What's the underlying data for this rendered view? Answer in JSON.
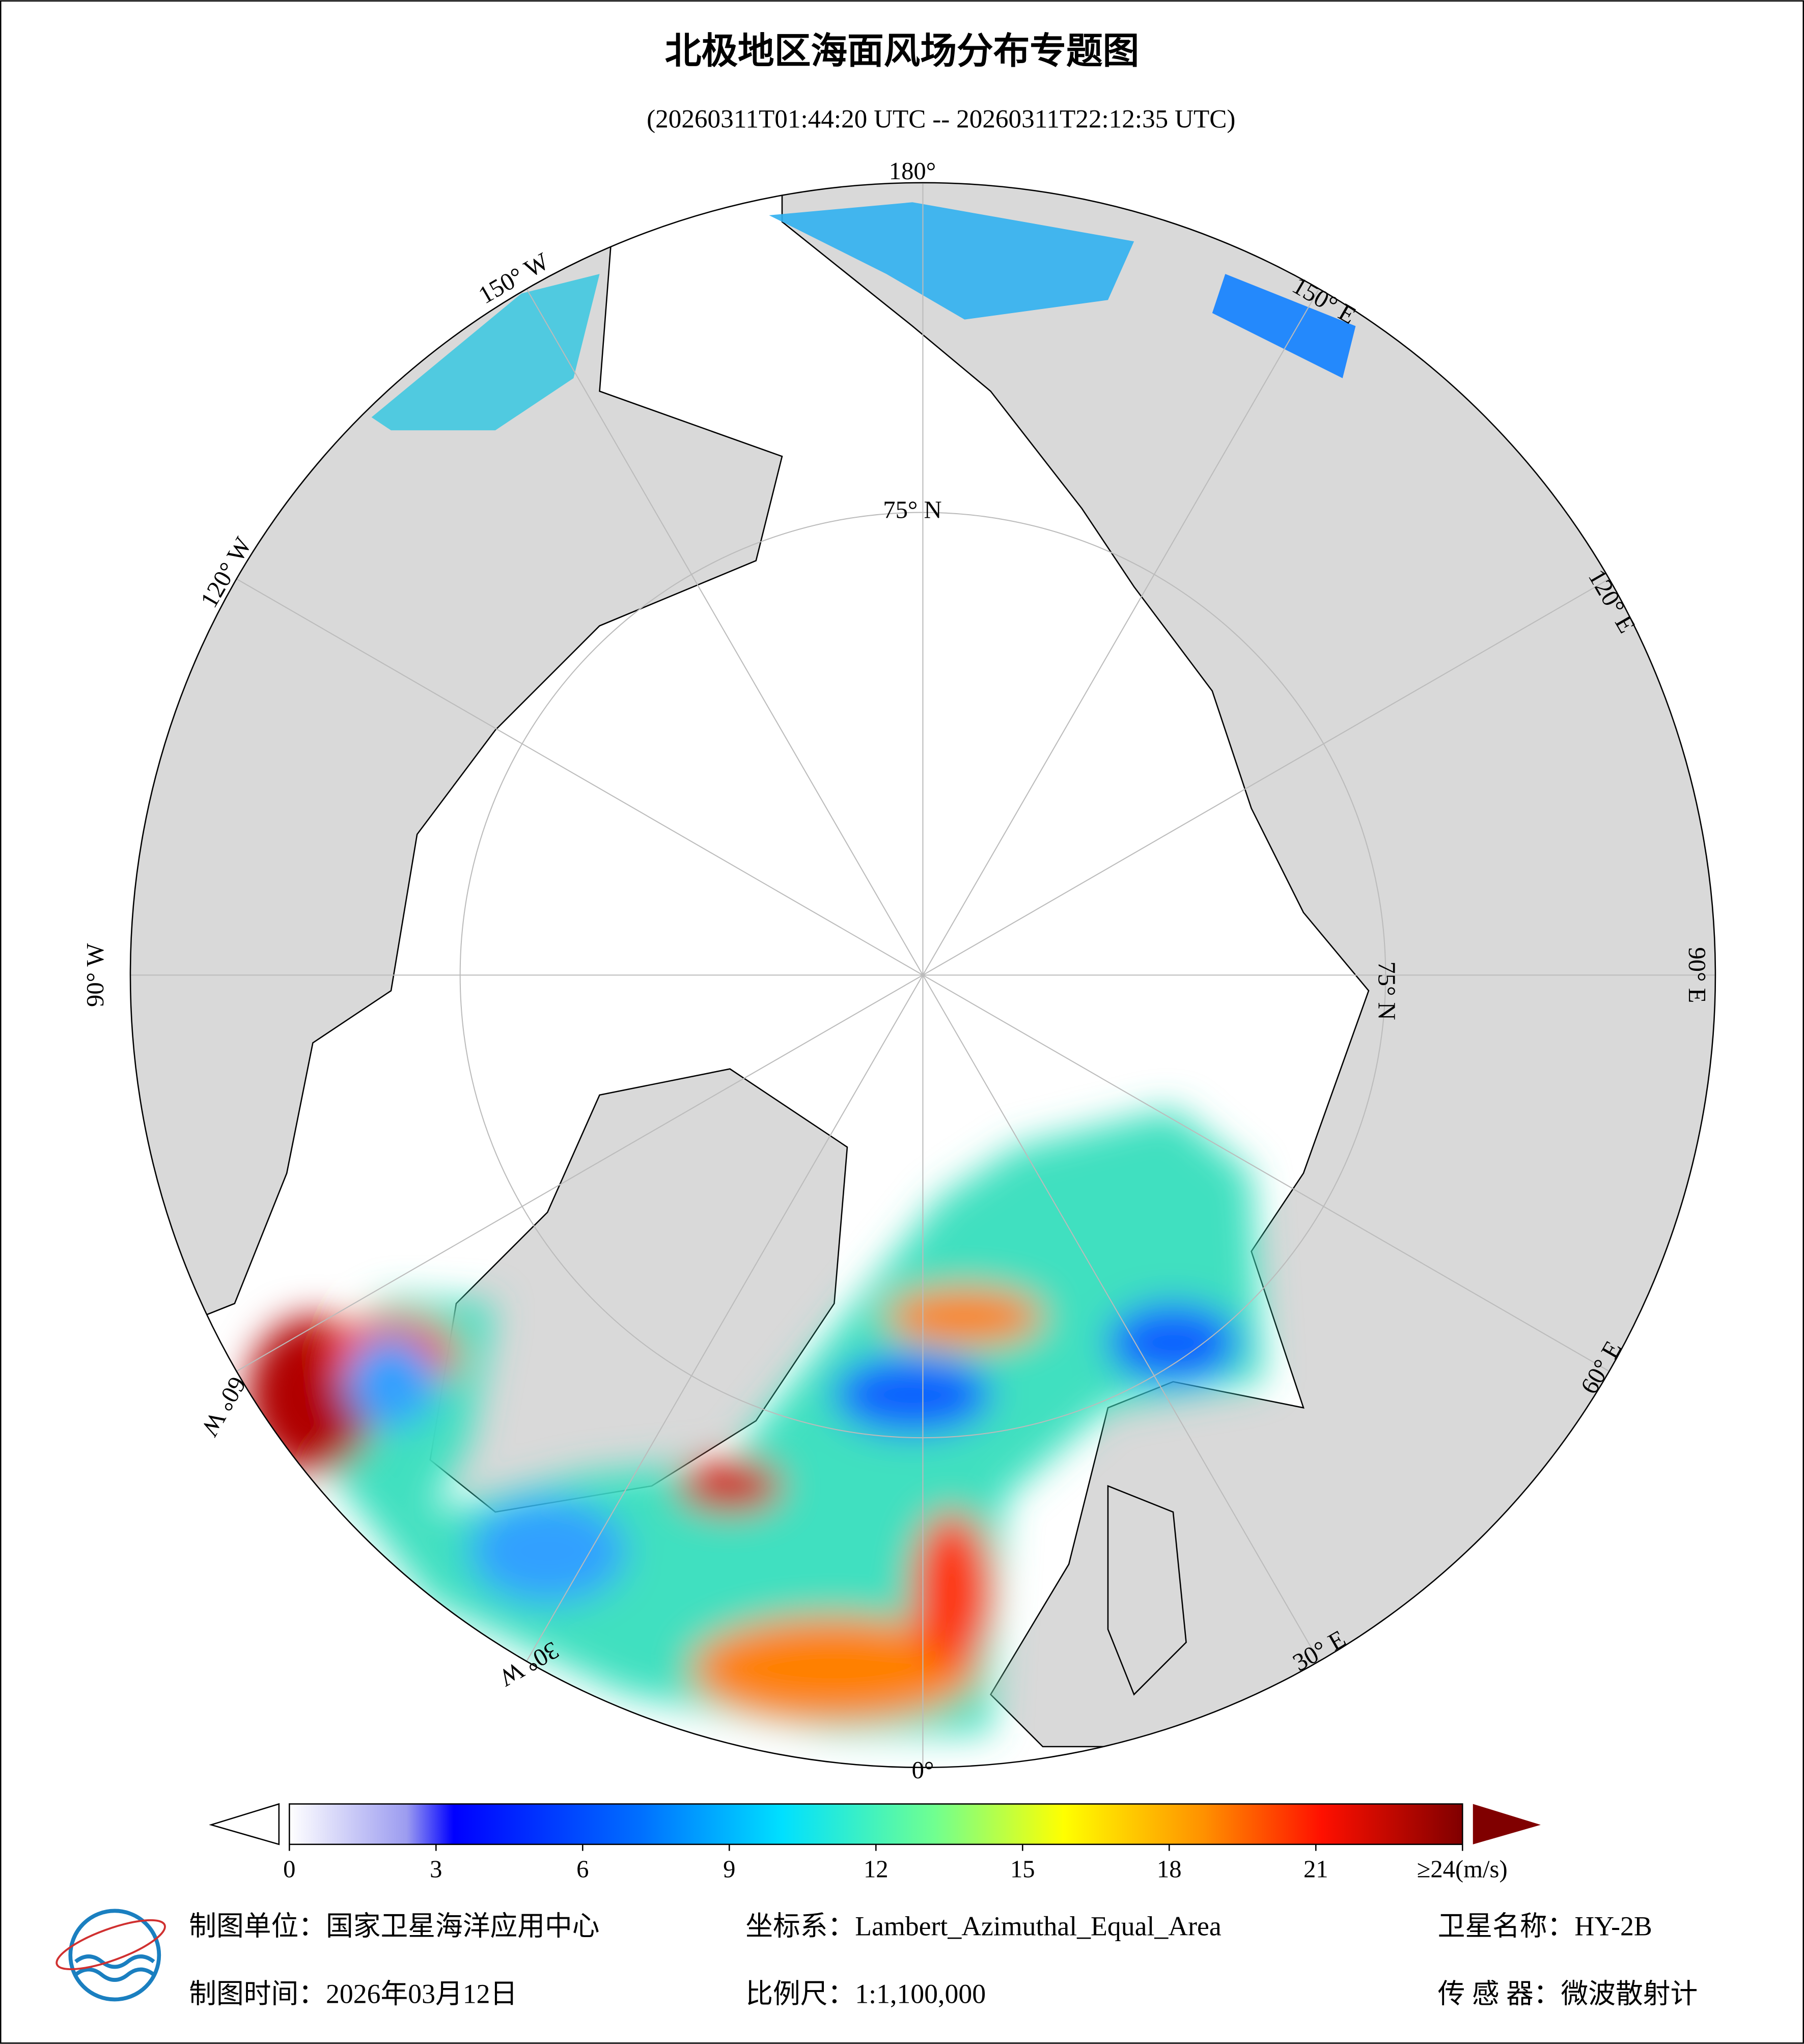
{
  "title": "北极地区海面风场分布专题图",
  "subtitle": "(20260311T01:44:20 UTC -- 20260311T22:12:35 UTC)",
  "map": {
    "graticule_labels": [
      "180°",
      "150° E",
      "120° E",
      "90° E",
      "60° E",
      "30° E",
      "0°",
      "30° W",
      "60° W",
      "90° W",
      "120° W",
      "150° W",
      "75° N",
      "75° N"
    ]
  },
  "colorbar": {
    "lim": [
      0,
      24
    ],
    "ticks": [
      0,
      3,
      6,
      9,
      12,
      15,
      18,
      21,
      {
        "value": 24,
        "label": "≥24(m/s)"
      }
    ]
  },
  "footer": {
    "unit": "制图单位：国家卫星海洋应用中心",
    "crs": "坐标系：Lambert_Azimuthal_Equal_Area",
    "satellite": "卫星名称：HY-2B",
    "date": "制图时间：2026年03月12日",
    "scale": "比例尺：1:1,100,000",
    "sensor": "传 感 器：微波散射计"
  }
}
